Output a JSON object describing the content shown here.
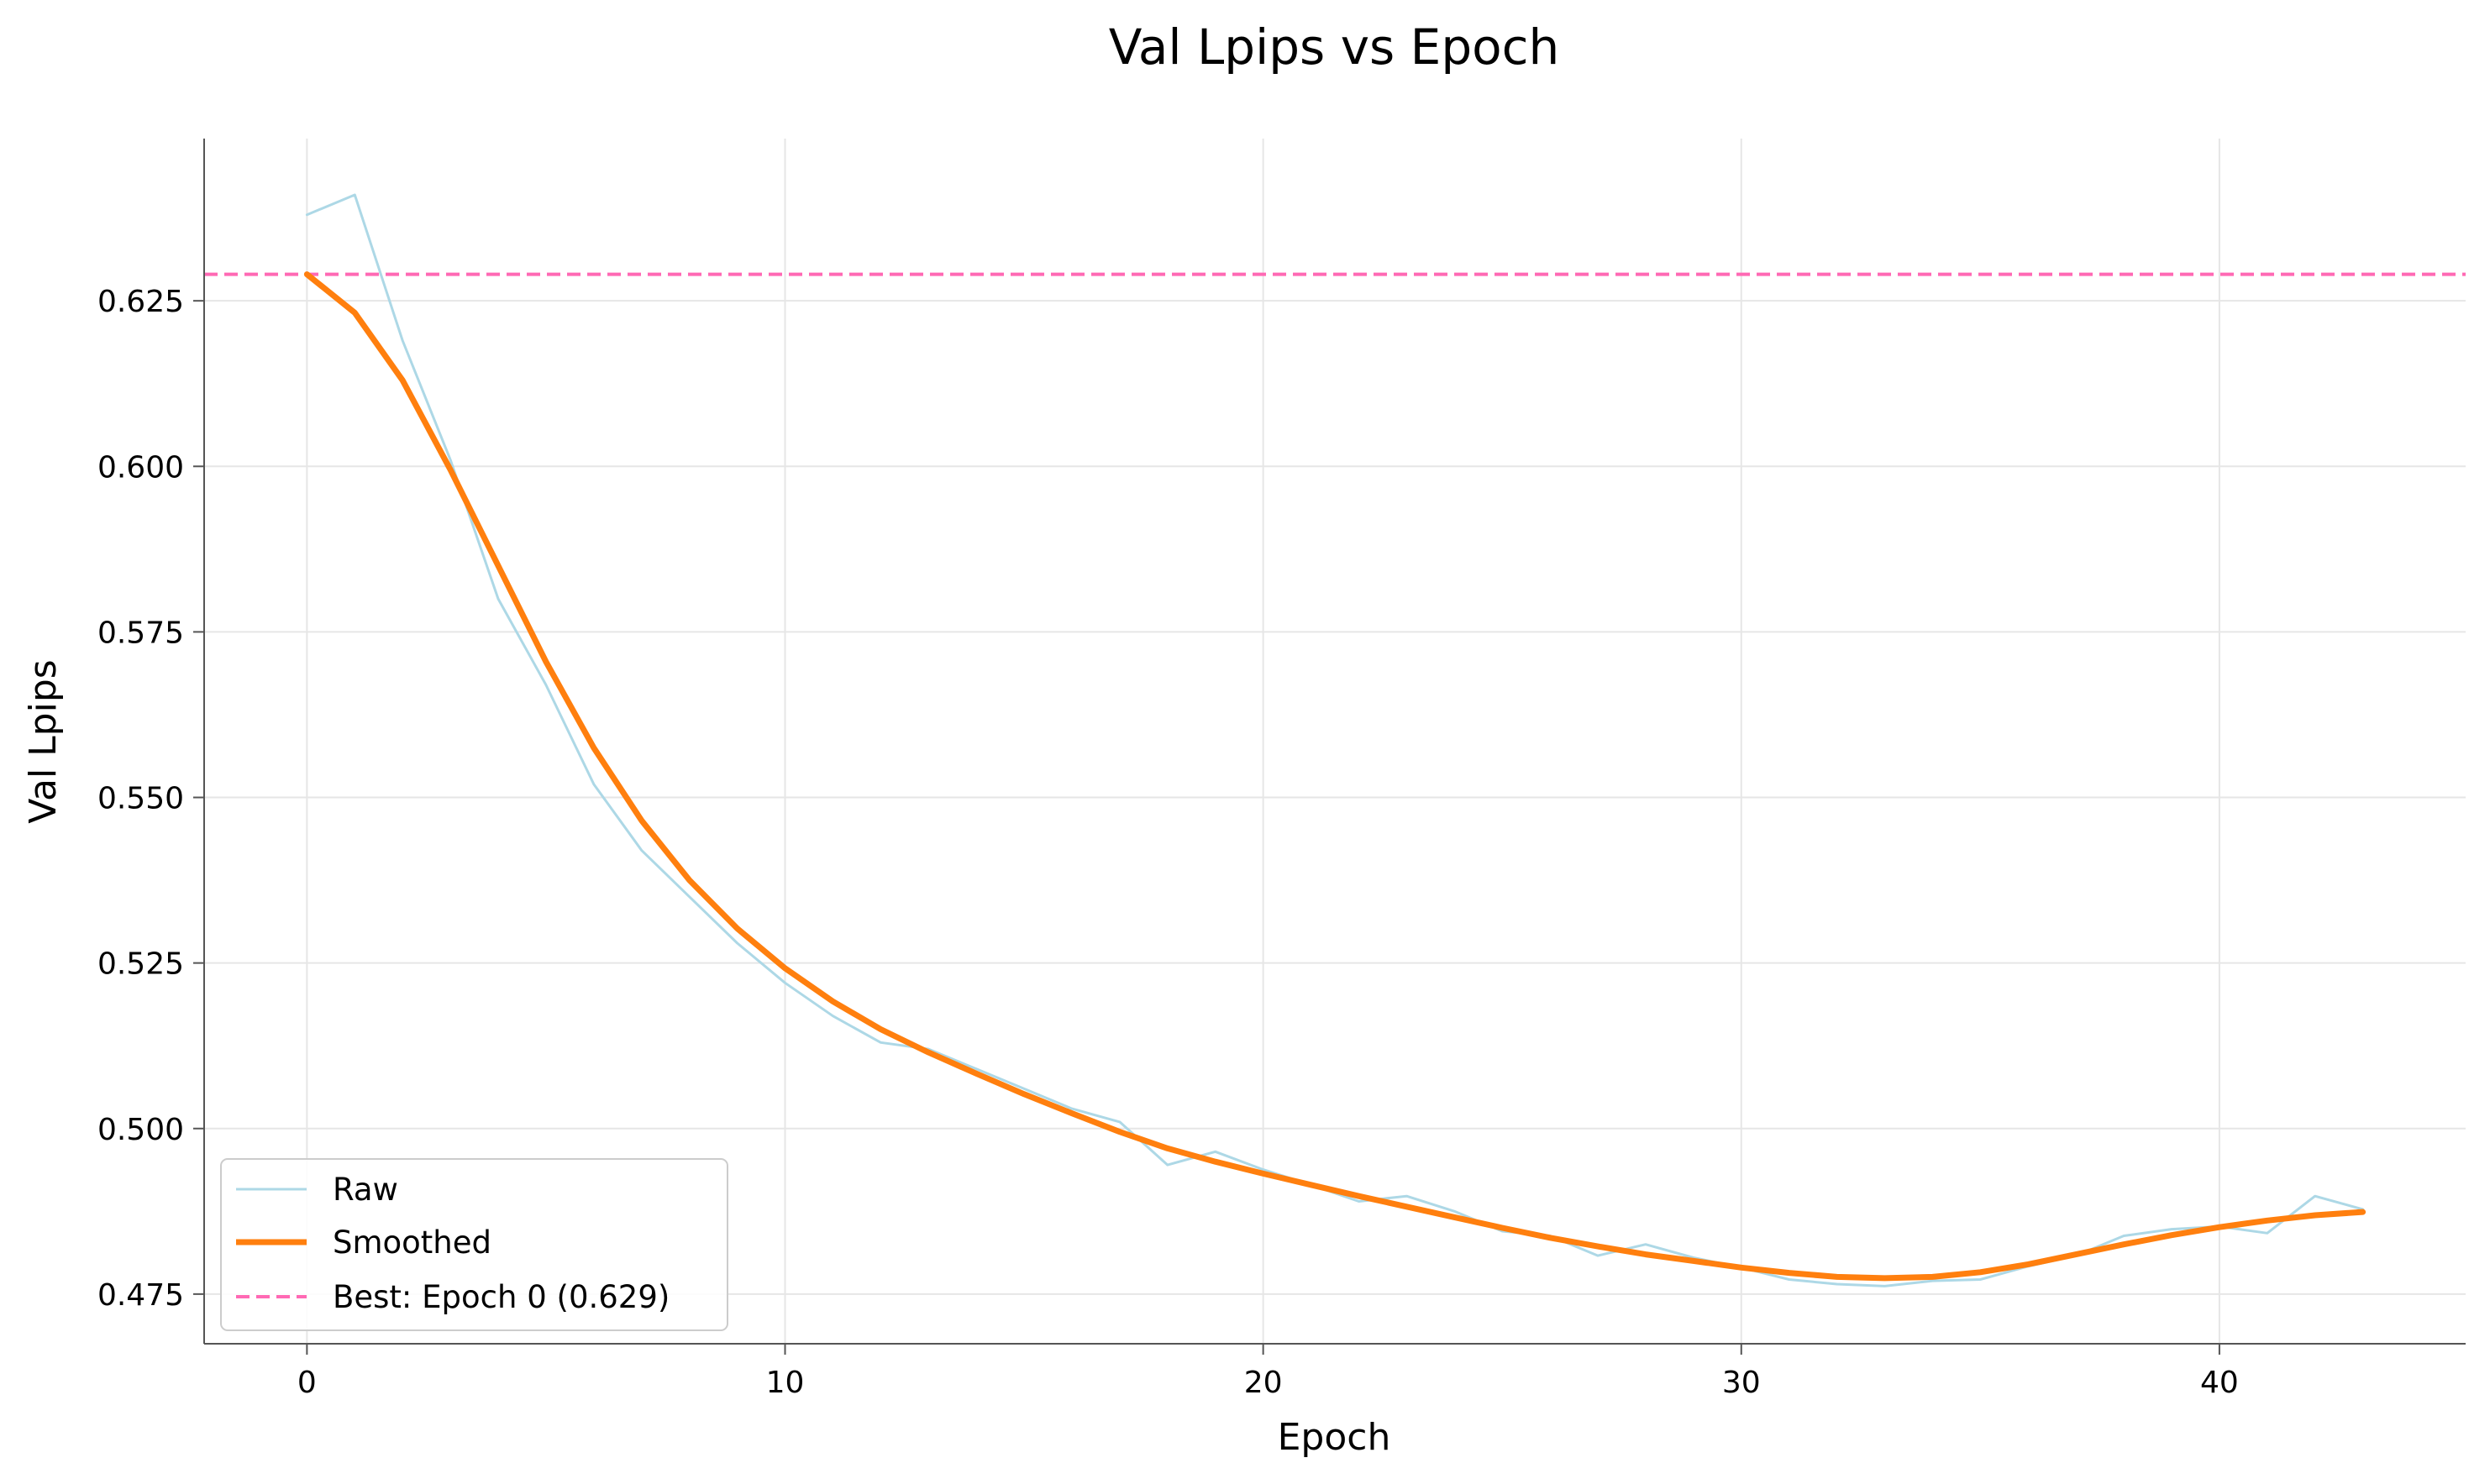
{
  "chart_data": {
    "type": "line",
    "title": "Val Lpips vs Epoch",
    "xlabel": "Epoch",
    "ylabel": "Val Lpips",
    "xlim": [
      -2.15,
      45.15
    ],
    "ylim": [
      0.4675,
      0.6495
    ],
    "x_ticks": [
      0,
      10,
      20,
      30,
      40
    ],
    "x_tick_labels": [
      "0",
      "10",
      "20",
      "30",
      "40"
    ],
    "y_ticks": [
      0.475,
      0.5,
      0.525,
      0.55,
      0.575,
      0.6,
      0.625
    ],
    "y_tick_labels": [
      "0.475",
      "0.500",
      "0.525",
      "0.550",
      "0.575",
      "0.600",
      "0.625"
    ],
    "grid": true,
    "legend_position": "lower-left",
    "x": [
      0,
      1,
      2,
      3,
      4,
      5,
      6,
      7,
      8,
      9,
      10,
      11,
      12,
      13,
      14,
      15,
      16,
      17,
      18,
      19,
      20,
      21,
      22,
      23,
      24,
      25,
      26,
      27,
      28,
      29,
      30,
      31,
      32,
      33,
      34,
      35,
      36,
      37,
      38,
      39,
      40,
      41,
      42,
      43
    ],
    "series": [
      {
        "name": "Raw",
        "color": "#add8e6",
        "style": "solid-thin",
        "values": [
          0.638,
          0.641,
          0.619,
          0.601,
          0.58,
          0.567,
          0.552,
          0.542,
          0.535,
          0.528,
          0.522,
          0.517,
          0.513,
          0.512,
          0.509,
          0.506,
          0.503,
          0.501,
          0.4945,
          0.4965,
          0.4938,
          0.4915,
          0.489,
          0.4898,
          0.4875,
          0.4845,
          0.4838,
          0.4808,
          0.4825,
          0.4805,
          0.479,
          0.4772,
          0.4765,
          0.4762,
          0.477,
          0.4772,
          0.4792,
          0.4808,
          0.4838,
          0.4848,
          0.4852,
          0.4842,
          0.4898,
          0.4878
        ]
      },
      {
        "name": "Smoothed",
        "color": "#ff7f0e",
        "style": "solid-thick",
        "values": [
          0.629,
          0.6232,
          0.613,
          0.5995,
          0.585,
          0.5705,
          0.5575,
          0.5465,
          0.5375,
          0.5302,
          0.5242,
          0.5192,
          0.515,
          0.5115,
          0.5083,
          0.5052,
          0.5023,
          0.4995,
          0.497,
          0.495,
          0.4932,
          0.4915,
          0.4898,
          0.4882,
          0.4866,
          0.485,
          0.4835,
          0.4822,
          0.481,
          0.48,
          0.479,
          0.4782,
          0.4776,
          0.4774,
          0.4776,
          0.4783,
          0.4795,
          0.481,
          0.4825,
          0.4839,
          0.4851,
          0.4861,
          0.4869,
          0.4874
        ]
      }
    ],
    "reference_line": {
      "name": "Best: Epoch 0 (0.629)",
      "y": 0.629,
      "color": "#ff69b4",
      "style": "dashed"
    }
  }
}
